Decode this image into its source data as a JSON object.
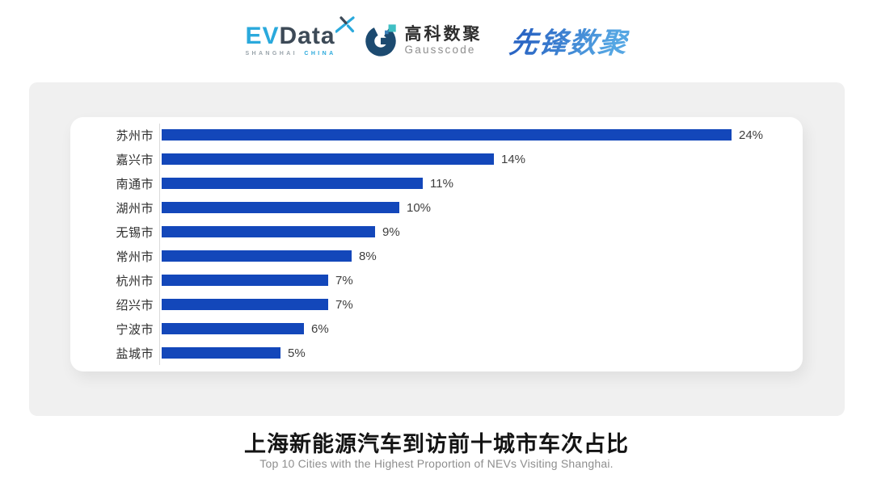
{
  "header": {
    "evdata_logo": {
      "part_ev": "EV",
      "part_data": "Data",
      "tagline_left": "SHANGHAI",
      "tagline_right": "CHINA",
      "color_light": "#2aa9dc",
      "color_dark": "#3d4a57"
    },
    "gausscode_logo": {
      "cn": "高科数聚",
      "en": "Gausscode",
      "mark_color": "#1c4a70",
      "accent_color": "#3fbfc4",
      "accent_color2": "#3a7fb8"
    },
    "pioneer_logo": {
      "text": "先锋数聚",
      "color_start": "#2b66c4",
      "color_end": "#55a6e3"
    }
  },
  "chart_data": {
    "type": "bar",
    "orientation": "horizontal",
    "title": "上海新能源汽车到访前十城市车次占比",
    "subtitle_en": "Top 10 Cities with the Highest Proportion of  NEVs Visiting Shanghai.",
    "categories": [
      "苏州市",
      "嘉兴市",
      "南通市",
      "湖州市",
      "无锡市",
      "常州市",
      "杭州市",
      "绍兴市",
      "宁波市",
      "盐城市"
    ],
    "values": [
      24,
      14,
      11,
      10,
      9,
      8,
      7,
      7,
      6,
      5
    ],
    "value_labels": [
      "24%",
      "14%",
      "11%",
      "10%",
      "9%",
      "8%",
      "7%",
      "7%",
      "6%",
      "5%"
    ],
    "unit": "%",
    "xlim": [
      0,
      24
    ],
    "bar_color": "#1347ba",
    "grid": false,
    "legend": false,
    "value_label_position": "end"
  }
}
